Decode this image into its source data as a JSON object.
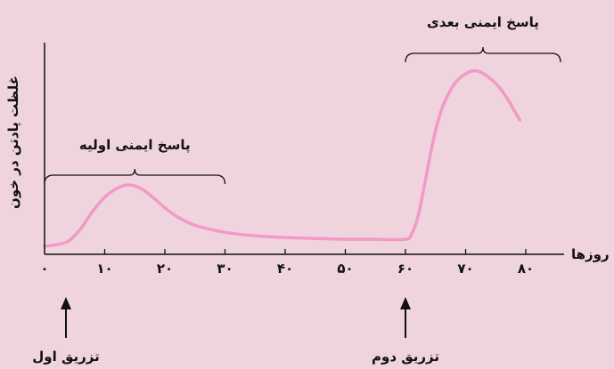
{
  "chart_data": {
    "type": "line",
    "xlabel": "روزها",
    "ylabel": "غلظت پادتن در خون",
    "x_ticks": [
      0,
      10,
      20,
      30,
      40,
      50,
      60,
      70,
      80
    ],
    "x_tick_labels": [
      "۰",
      "۱۰",
      "۲۰",
      "۳۰",
      "۴۰",
      "۵۰",
      "۶۰",
      "۷۰",
      "۸۰"
    ],
    "xlim": [
      0,
      85
    ],
    "ylim": [
      0,
      100
    ],
    "series": [
      {
        "x": [
          0,
          2,
          4,
          6,
          8,
          10,
          12,
          14,
          16,
          18,
          20,
          22,
          25,
          30,
          35,
          40,
          45,
          50,
          55,
          60,
          61,
          62,
          63,
          64,
          65,
          66,
          67,
          68,
          69,
          70,
          71,
          72,
          73,
          74,
          75,
          76,
          77,
          78,
          79
        ],
        "y": [
          0,
          1,
          3,
          10,
          20,
          28,
          33,
          35,
          33,
          28,
          22,
          17,
          12,
          8,
          6,
          5,
          4.5,
          4,
          4,
          4,
          7,
          16,
          32,
          50,
          66,
          78,
          86,
          92,
          96,
          98.5,
          100,
          100,
          98.5,
          96,
          93,
          89,
          84,
          78,
          72
        ]
      }
    ],
    "annotations": {
      "primary": {
        "label": "پاسخ ایمنی اولیه",
        "x_range": [
          0,
          30
        ]
      },
      "secondary": {
        "label": "پاسخ ایمنی بعدی",
        "x_range": [
          60,
          85
        ]
      },
      "first_injection": {
        "label": "تزریق اول",
        "x": 5
      },
      "second_injection": {
        "label": "تزریق دوم",
        "x": 60
      }
    },
    "colors": {
      "line": "#f19ac6",
      "background": "#f0d4dd",
      "axis": "#111111"
    }
  }
}
